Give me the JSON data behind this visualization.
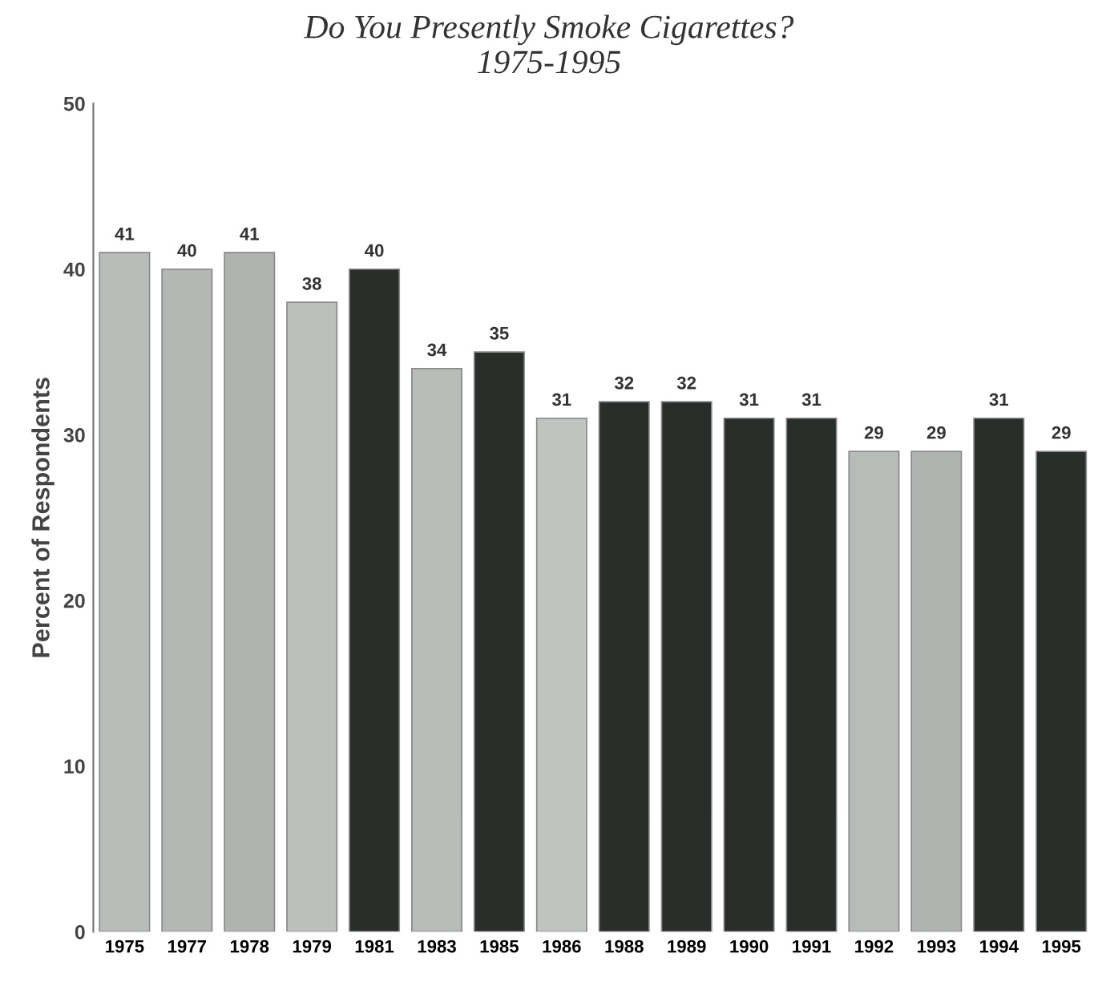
{
  "chart_data": {
    "type": "bar",
    "title": "Do You Presently Smoke Cigarettes?\n1975-1995",
    "categories": [
      "1975",
      "1977",
      "1978",
      "1979",
      "1981",
      "1983",
      "1985",
      "1986",
      "1988",
      "1989",
      "1990",
      "1991",
      "1992",
      "1993",
      "1994",
      "1995"
    ],
    "values": [
      41,
      40,
      41,
      38,
      40,
      34,
      35,
      31,
      32,
      32,
      31,
      31,
      29,
      29,
      31,
      29
    ],
    "colors": [
      "#b9bdb9",
      "#b4b8b4",
      "#b0b4b0",
      "#bcc0bc",
      "#2a2e2a",
      "#b8bcb8",
      "#2a2e2a",
      "#c0c4c0",
      "#2a2e2a",
      "#2a2e2a",
      "#2a2e2a",
      "#2a2e2a",
      "#b8bcb8",
      "#b0b4b0",
      "#2a2e2a",
      "#2a2e2a"
    ],
    "ylabel": "Percent of Respondents",
    "ylim": [
      0,
      50
    ],
    "yticks": [
      0,
      10,
      20,
      30,
      40,
      50
    ],
    "data_labels": true,
    "grid": false,
    "legend": false
  }
}
